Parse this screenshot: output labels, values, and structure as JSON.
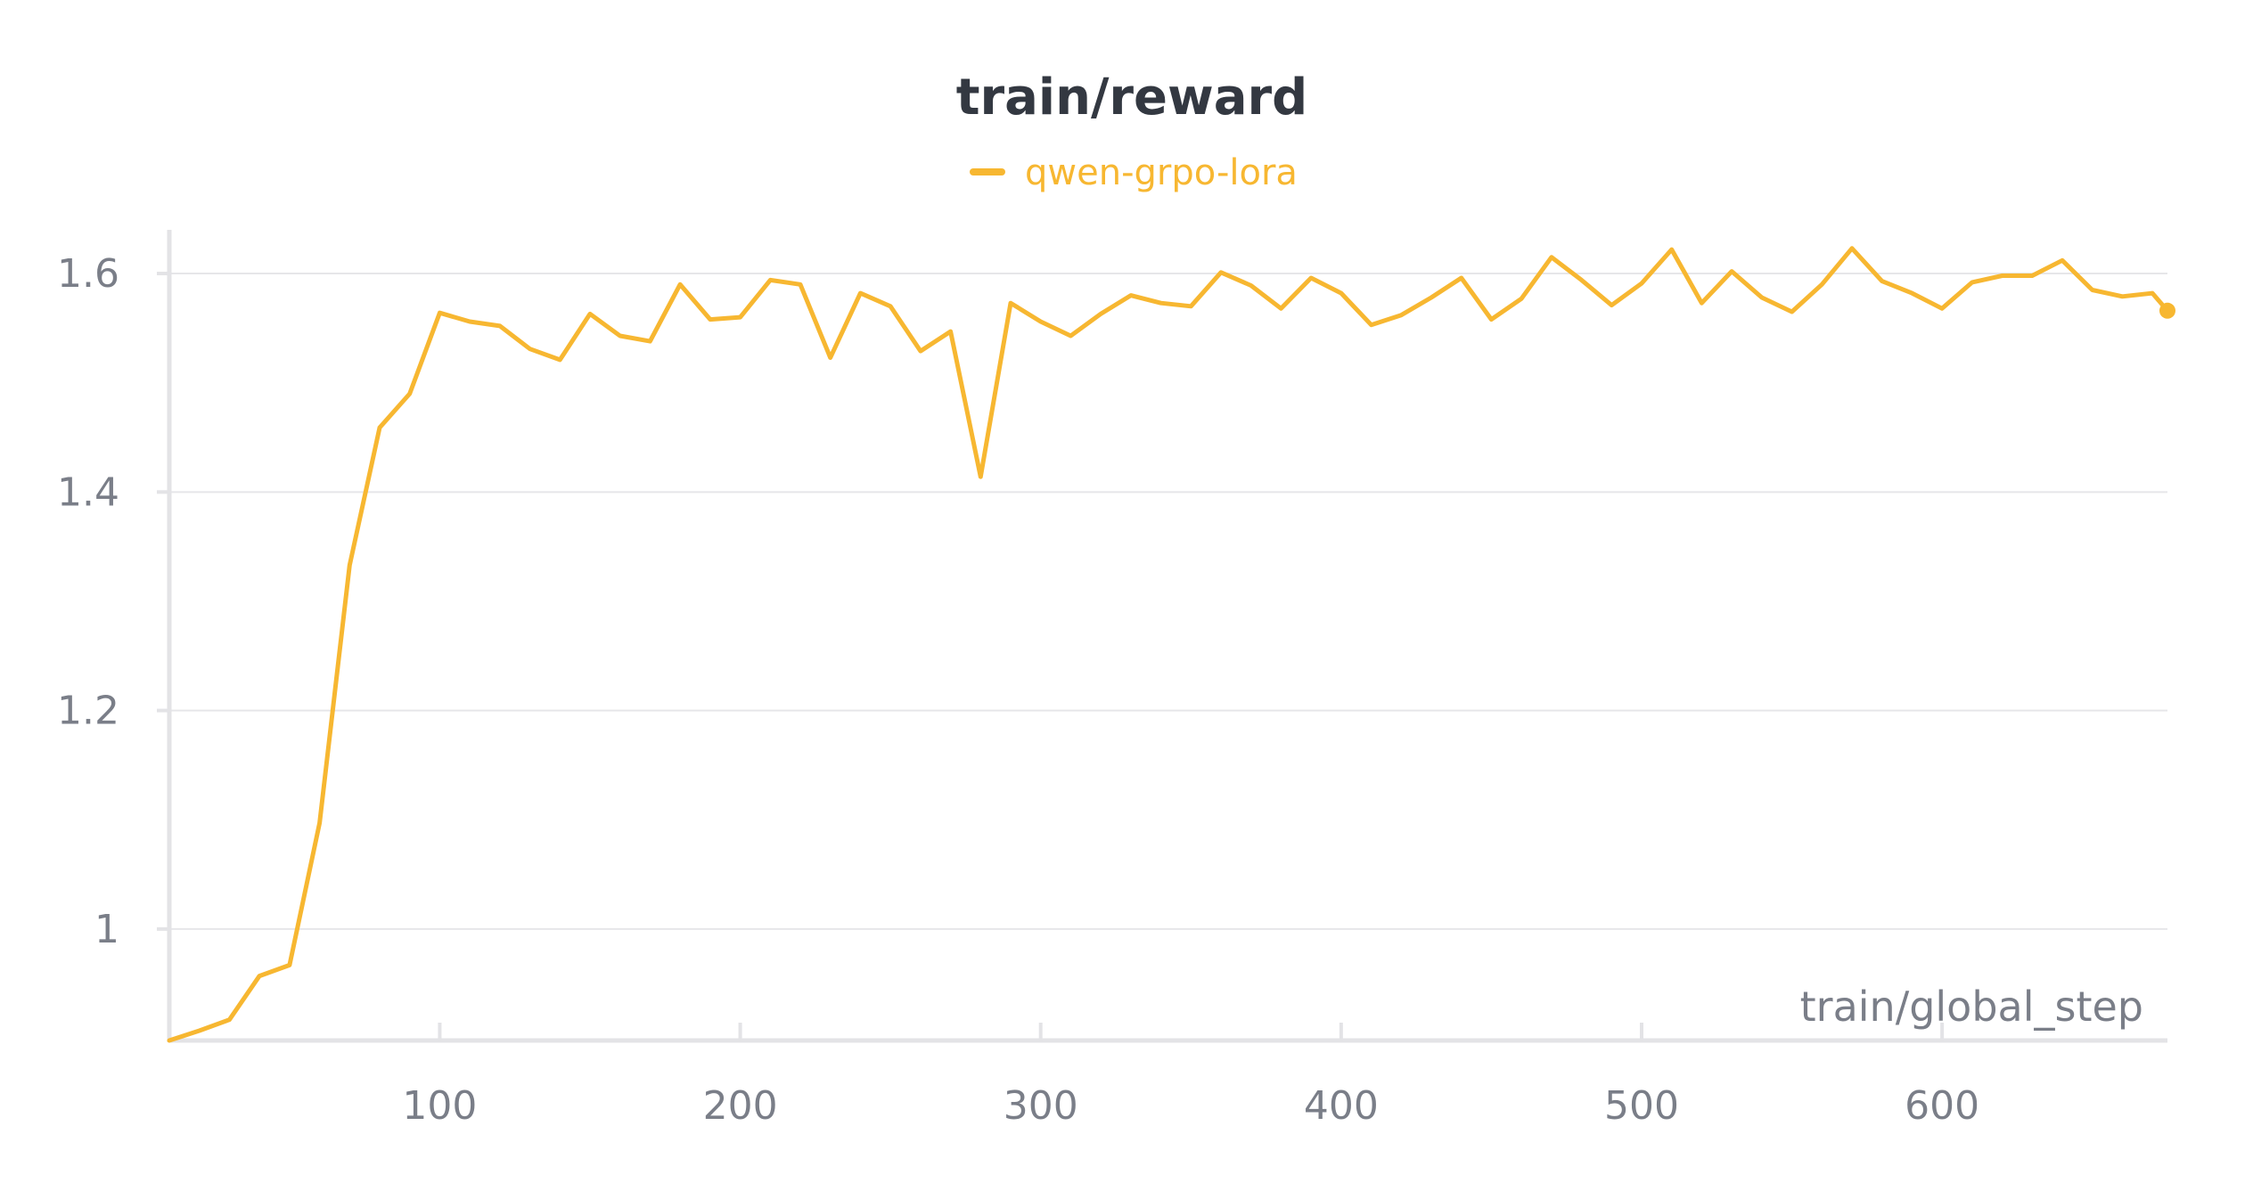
{
  "chart_data": {
    "type": "line",
    "title": "train/reward",
    "xlabel": "train/global_step",
    "ylabel": "",
    "xlim": [
      10,
      675
    ],
    "ylim": [
      0.898,
      1.64
    ],
    "xticks": [
      100,
      200,
      300,
      400,
      500,
      600
    ],
    "yticks": [
      1,
      1.2,
      1.4,
      1.6
    ],
    "ytick_labels": [
      "1",
      "1.2",
      "1.4",
      "1.6"
    ],
    "grid": true,
    "legend": "top-center",
    "series": [
      {
        "name": "qwen-grpo-lora",
        "color": "#f7b731",
        "x": [
          10,
          20,
          30,
          40,
          50,
          60,
          70,
          80,
          90,
          100,
          110,
          120,
          130,
          140,
          150,
          160,
          170,
          180,
          190,
          200,
          210,
          220,
          230,
          240,
          250,
          260,
          270,
          280,
          290,
          300,
          310,
          320,
          330,
          340,
          350,
          360,
          370,
          380,
          390,
          400,
          410,
          420,
          430,
          440,
          450,
          460,
          470,
          480,
          490,
          500,
          510,
          520,
          530,
          540,
          550,
          560,
          570,
          580,
          590,
          600,
          610,
          620,
          630,
          640,
          650,
          660,
          670,
          675
        ],
        "y": [
          0.898,
          0.907,
          0.917,
          0.957,
          0.967,
          1.097,
          1.333,
          1.459,
          1.49,
          1.564,
          1.556,
          1.552,
          1.531,
          1.521,
          1.563,
          1.543,
          1.538,
          1.59,
          1.558,
          1.56,
          1.594,
          1.59,
          1.523,
          1.582,
          1.57,
          1.529,
          1.547,
          1.414,
          1.573,
          1.556,
          1.543,
          1.563,
          1.58,
          1.573,
          1.57,
          1.601,
          1.589,
          1.568,
          1.596,
          1.582,
          1.553,
          1.562,
          1.578,
          1.596,
          1.558,
          1.577,
          1.615,
          1.594,
          1.571,
          1.591,
          1.622,
          1.573,
          1.602,
          1.578,
          1.565,
          1.59,
          1.623,
          1.593,
          1.582,
          1.568,
          1.592,
          1.598,
          1.598,
          1.612,
          1.585,
          1.579,
          1.582,
          1.566
        ]
      }
    ]
  }
}
